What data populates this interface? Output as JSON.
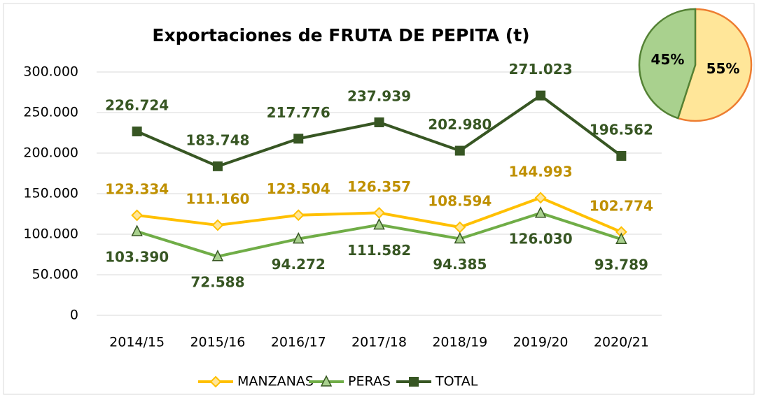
{
  "chart_data": [
    {
      "type": "line",
      "title": "Exportaciones de FRUTA DE PEPITA (t)",
      "categories": [
        "2014/15",
        "2015/16",
        "2016/17",
        "2017/18",
        "2018/19",
        "2019/20",
        "2020/21"
      ],
      "series": [
        {
          "name": "MANZANAS",
          "color": "#ffc000",
          "label_color": "#bf9000",
          "marker": "diamond",
          "label_position": "above",
          "values": [
            123334,
            111160,
            123504,
            126357,
            108594,
            144993,
            102774
          ],
          "value_labels": [
            "123.334",
            "111.160",
            "123.504",
            "126.357",
            "108.594",
            "144.993",
            "102.774"
          ]
        },
        {
          "name": "PERAS",
          "color": "#70ad47",
          "label_color": "#375623",
          "marker": "triangle",
          "label_position": "below",
          "values": [
            103390,
            72588,
            94272,
            111582,
            94385,
            126030,
            93789
          ],
          "value_labels": [
            "103.390",
            "72.588",
            "94.272",
            "111.582",
            "94.385",
            "126.030",
            "93.789"
          ]
        },
        {
          "name": "TOTAL",
          "color": "#375623",
          "label_color": "#375623",
          "marker": "square",
          "label_position": "above",
          "values": [
            226724,
            183748,
            217776,
            237939,
            202980,
            271023,
            196562
          ],
          "value_labels": [
            "226.724",
            "183.748",
            "217.776",
            "237.939",
            "202.980",
            "271.023",
            "196.562"
          ]
        }
      ],
      "ylim": [
        0,
        300000
      ],
      "yticks": [
        0,
        {
          "value": 50000,
          "label": "50.000"
        },
        {
          "value": 100000,
          "label": "100.000"
        },
        {
          "value": 150000,
          "label": "150.000"
        },
        {
          "value": 200000,
          "label": "200.000"
        },
        {
          "value": 250000,
          "label": "250.000"
        },
        {
          "value": 300000,
          "label": "300.000"
        }
      ],
      "grid": true,
      "legend": "bottom"
    },
    {
      "type": "pie",
      "values": [
        55,
        45
      ],
      "value_labels": [
        "55%",
        "45%"
      ],
      "colors": [
        "#ffe699",
        "#a9d18e"
      ],
      "edge_colors": [
        "#ed7d31",
        "#548235"
      ]
    }
  ]
}
